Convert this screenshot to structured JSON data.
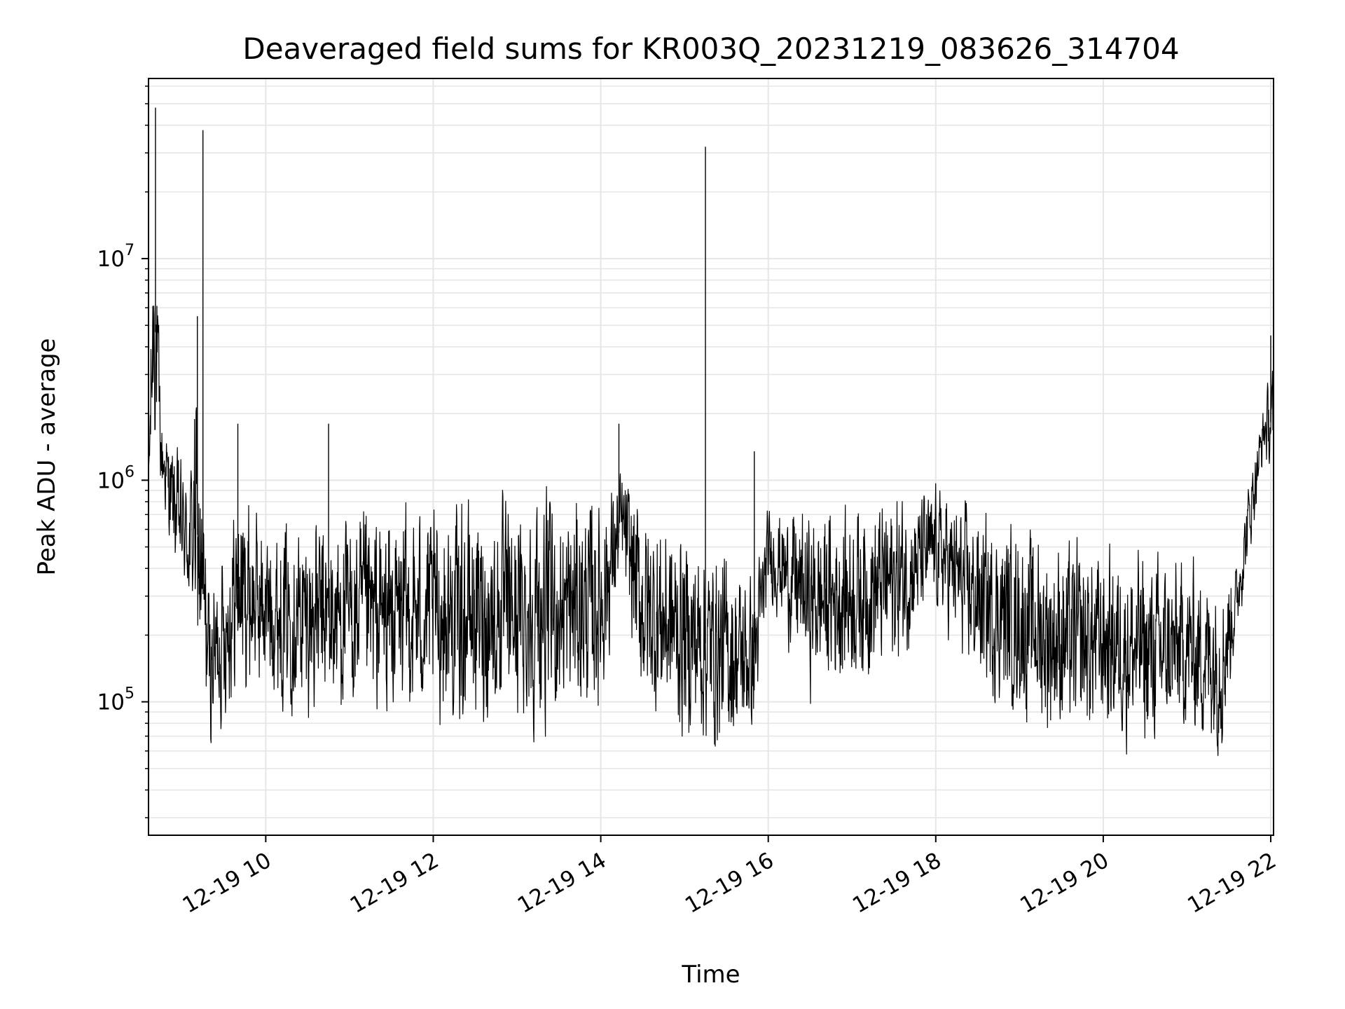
{
  "chart_data": {
    "type": "line",
    "title": "Deaveraged field sums for KR003Q_20231219_083626_314704",
    "xlabel": "Time",
    "ylabel": "Peak ADU - average",
    "yscale": "log",
    "ylim": [
      25000,
      65000000
    ],
    "xlim": [
      "2023-12-19 08:36",
      "2023-12-19 22:02"
    ],
    "x_ticks": [
      {
        "value": "2023-12-19 10:00",
        "label": "12-19 10"
      },
      {
        "value": "2023-12-19 12:00",
        "label": "12-19 12"
      },
      {
        "value": "2023-12-19 14:00",
        "label": "12-19 14"
      },
      {
        "value": "2023-12-19 16:00",
        "label": "12-19 16"
      },
      {
        "value": "2023-12-19 18:00",
        "label": "12-19 18"
      },
      {
        "value": "2023-12-19 20:00",
        "label": "12-19 20"
      },
      {
        "value": "2023-12-19 22:00",
        "label": "12-19 22"
      }
    ],
    "y_ticks": [
      {
        "value": 100000,
        "base": "10",
        "exp": "5"
      },
      {
        "value": 1000000,
        "base": "10",
        "exp": "6"
      },
      {
        "value": 10000000,
        "base": "10",
        "exp": "7"
      }
    ],
    "grid": true,
    "colors": {
      "line": "#000000",
      "grid": "#e6e6e6",
      "axes": "#000000"
    },
    "series": [
      {
        "envelope": [
          {
            "t": "2023-12-19 08:36",
            "low": 600000,
            "high": 1500000
          },
          {
            "t": "2023-12-19 08:40",
            "low": 900000,
            "high": 45000000
          },
          {
            "t": "2023-12-19 08:45",
            "low": 700000,
            "high": 2500000
          },
          {
            "t": "2023-12-19 08:55",
            "low": 300000,
            "high": 1800000
          },
          {
            "t": "2023-12-19 09:05",
            "low": 200000,
            "high": 1300000
          },
          {
            "t": "2023-12-19 09:10",
            "low": 80000,
            "high": 5500000
          },
          {
            "t": "2023-12-19 09:20",
            "low": 50000,
            "high": 400000
          },
          {
            "t": "2023-12-19 09:40",
            "low": 70000,
            "high": 1500000
          },
          {
            "t": "2023-12-19 10:00",
            "low": 80000,
            "high": 900000
          },
          {
            "t": "2023-12-19 10:30",
            "low": 60000,
            "high": 1000000
          },
          {
            "t": "2023-12-19 11:00",
            "low": 55000,
            "high": 1000000
          },
          {
            "t": "2023-12-19 11:30",
            "low": 55000,
            "high": 1100000
          },
          {
            "t": "2023-12-19 12:00",
            "low": 55000,
            "high": 1100000
          },
          {
            "t": "2023-12-19 12:30",
            "low": 50000,
            "high": 1200000
          },
          {
            "t": "2023-12-19 13:00",
            "low": 52000,
            "high": 1200000
          },
          {
            "t": "2023-12-19 13:30",
            "low": 50000,
            "high": 1300000
          },
          {
            "t": "2023-12-19 14:00",
            "low": 60000,
            "high": 1300000
          },
          {
            "t": "2023-12-19 14:15",
            "low": 300000,
            "high": 1400000
          },
          {
            "t": "2023-12-19 14:30",
            "low": 60000,
            "high": 1200000
          },
          {
            "t": "2023-12-19 15:00",
            "low": 45000,
            "high": 900000
          },
          {
            "t": "2023-12-19 15:30",
            "low": 40000,
            "high": 700000
          },
          {
            "t": "2023-12-19 15:50",
            "low": 50000,
            "high": 500000
          },
          {
            "t": "2023-12-19 16:00",
            "low": 250000,
            "high": 900000
          },
          {
            "t": "2023-12-19 16:30",
            "low": 80000,
            "high": 1000000
          },
          {
            "t": "2023-12-19 17:00",
            "low": 85000,
            "high": 1100000
          },
          {
            "t": "2023-12-19 17:30",
            "low": 100000,
            "high": 1200000
          },
          {
            "t": "2023-12-19 18:00",
            "low": 200000,
            "high": 1200000
          },
          {
            "t": "2023-12-19 18:30",
            "low": 80000,
            "high": 1000000
          },
          {
            "t": "2023-12-19 19:00",
            "low": 60000,
            "high": 900000
          },
          {
            "t": "2023-12-19 19:30",
            "low": 45000,
            "high": 800000
          },
          {
            "t": "2023-12-19 20:00",
            "low": 50000,
            "high": 700000
          },
          {
            "t": "2023-12-19 20:30",
            "low": 40000,
            "high": 700000
          },
          {
            "t": "2023-12-19 21:00",
            "low": 50000,
            "high": 600000
          },
          {
            "t": "2023-12-19 21:25",
            "low": 40000,
            "high": 600000
          },
          {
            "t": "2023-12-19 21:35",
            "low": 150000,
            "high": 500000
          },
          {
            "t": "2023-12-19 21:45",
            "low": 400000,
            "high": 1300000
          },
          {
            "t": "2023-12-19 21:55",
            "low": 1100000,
            "high": 2500000
          },
          {
            "t": "2023-12-19 22:02",
            "low": 800000,
            "high": 4500000
          }
        ],
        "spikes": [
          {
            "t": "2023-12-19 08:41",
            "value": 48000000
          },
          {
            "t": "2023-12-19 09:11",
            "value": 5500000
          },
          {
            "t": "2023-12-19 09:40",
            "value": 1800000
          },
          {
            "t": "2023-12-19 10:45",
            "value": 1800000
          },
          {
            "t": "2023-12-19 14:13",
            "value": 1800000
          },
          {
            "t": "2023-12-19 15:50",
            "value": 1350000
          },
          {
            "t": "2023-12-19 22:00",
            "value": 4500000
          },
          {
            "t": "2023-12-19 09:15",
            "value": 38000000
          },
          {
            "t": "2023-12-19 15:15",
            "value": 32000000
          }
        ]
      }
    ]
  }
}
